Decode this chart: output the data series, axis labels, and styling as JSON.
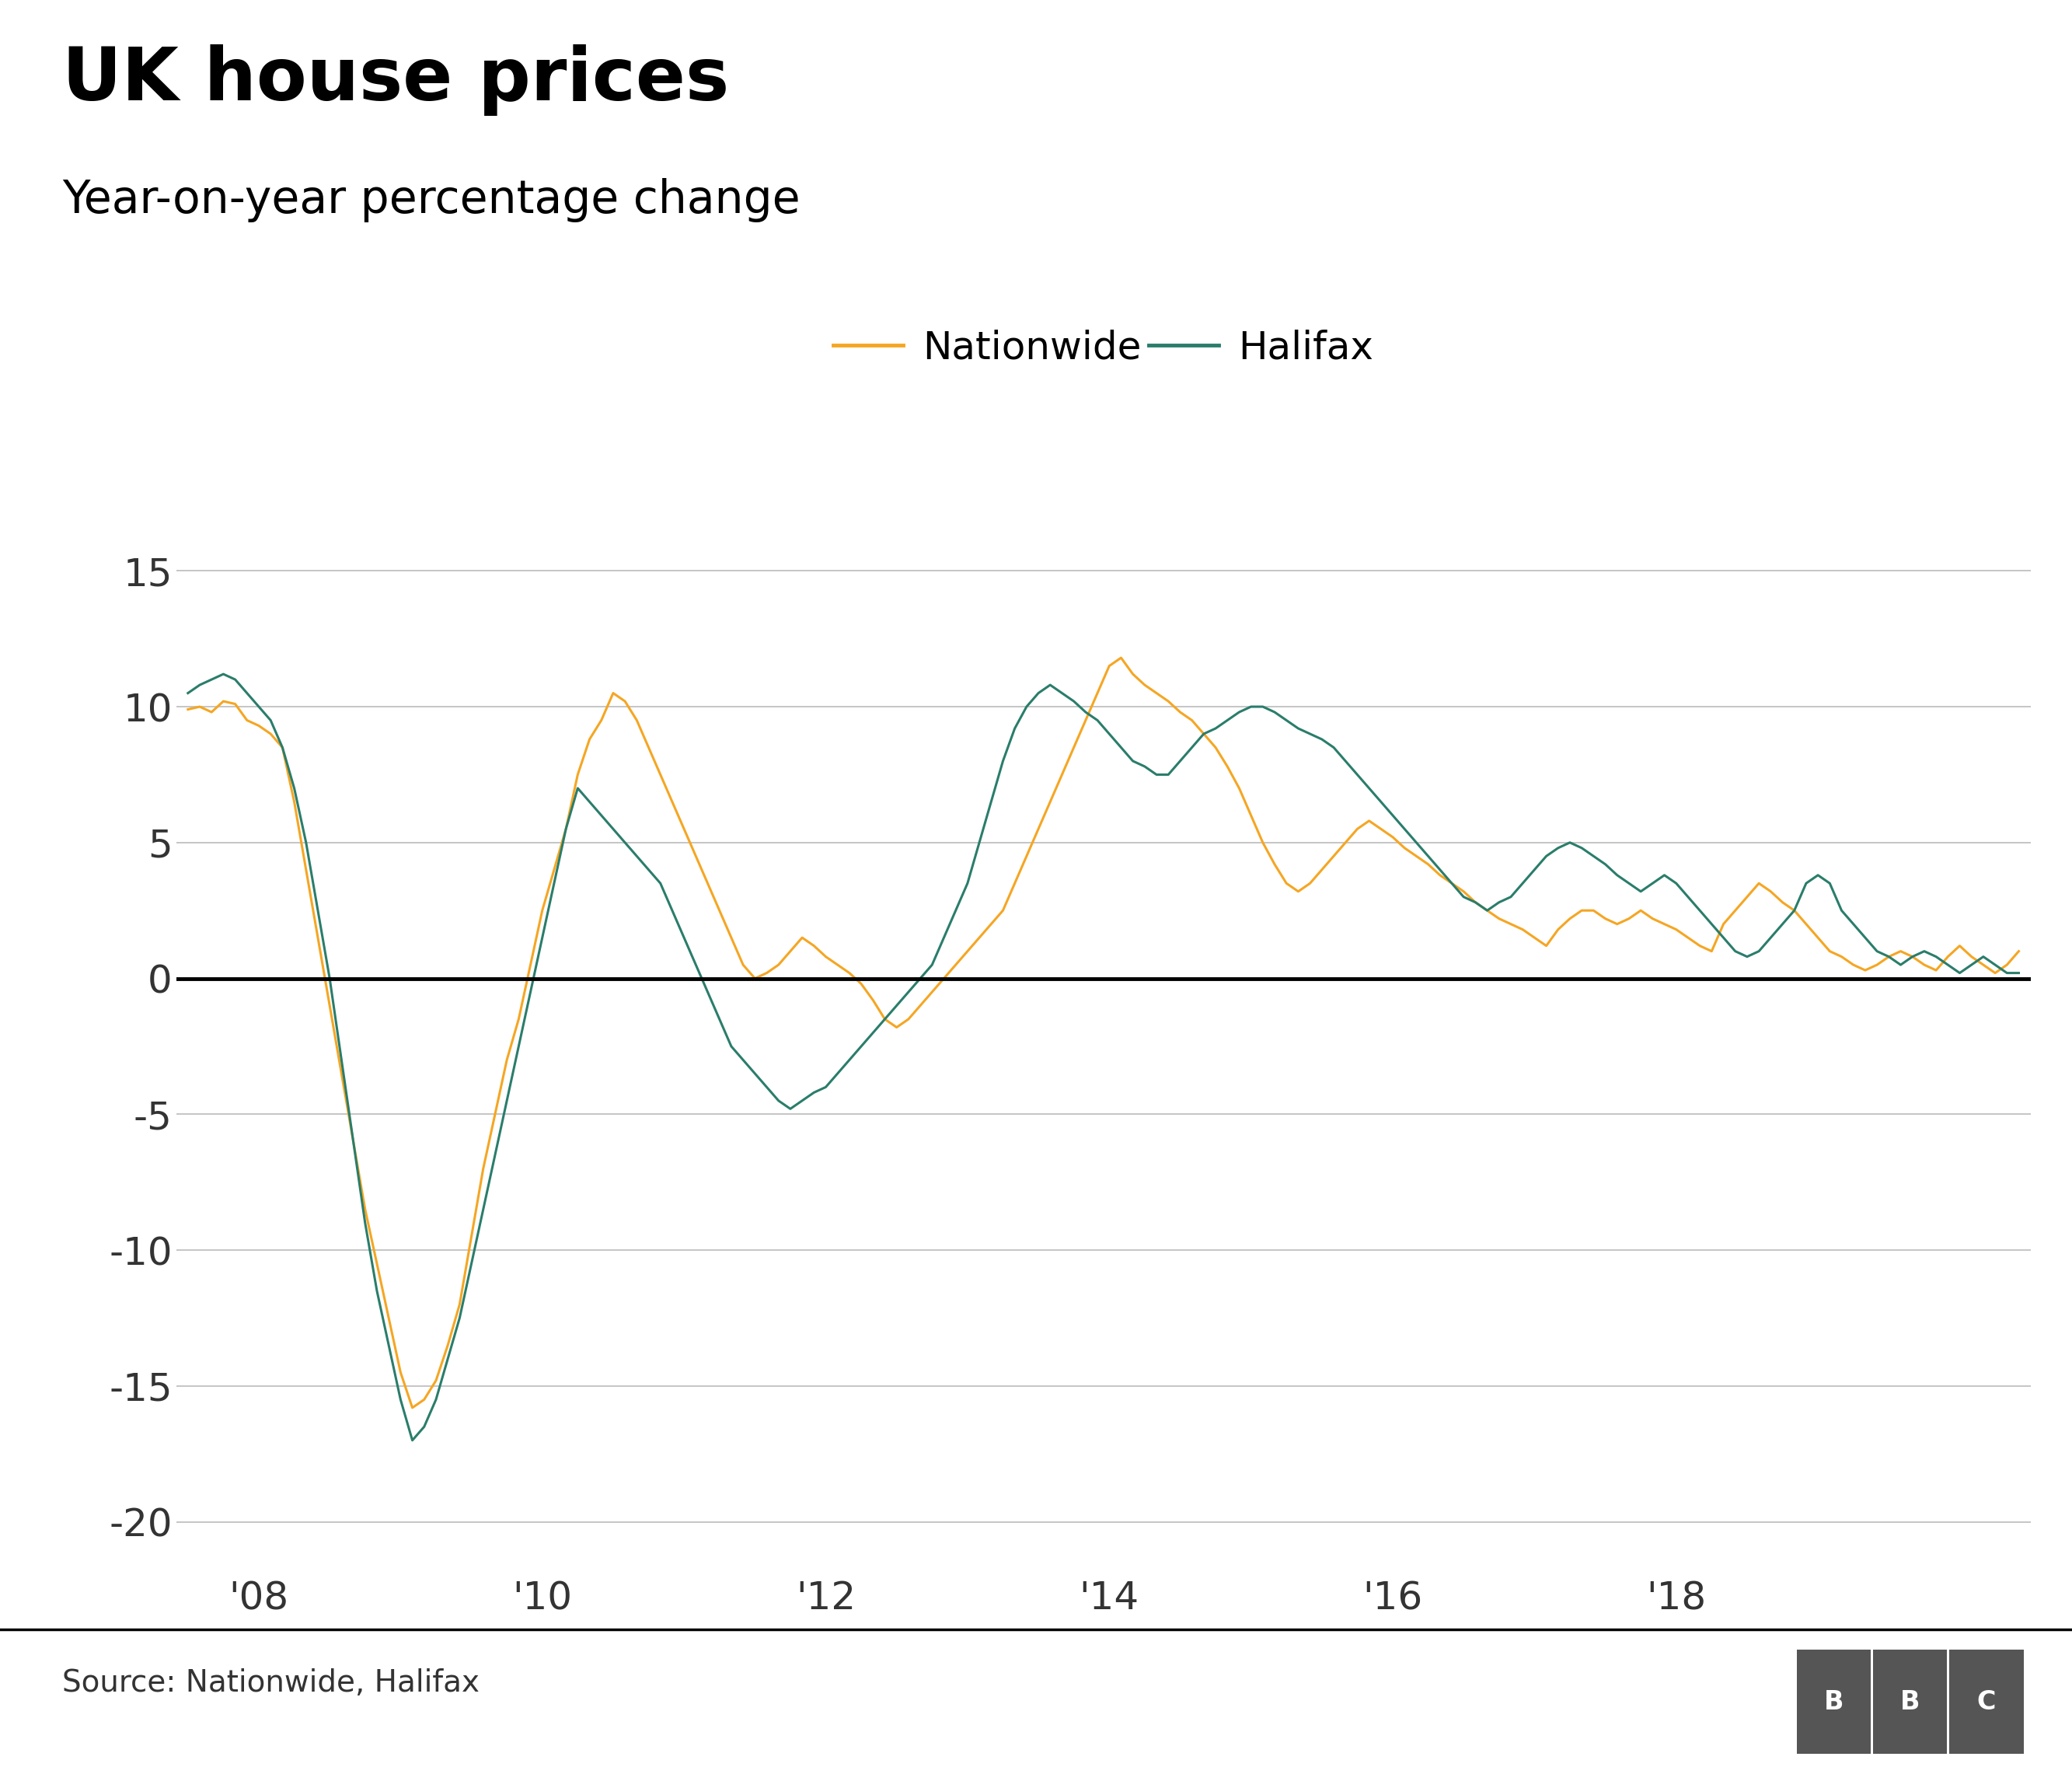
{
  "title": "UK house prices",
  "subtitle": "Year-on-year percentage change",
  "source": "Source: Nationwide, Halifax",
  "nationwide_color": "#f5a623",
  "halifax_color": "#2a7d6b",
  "zero_line_color": "#000000",
  "grid_color": "#bbbbbb",
  "background_color": "#ffffff",
  "ylim": [
    -22,
    17
  ],
  "yticks": [
    -20,
    -15,
    -10,
    -5,
    0,
    5,
    10,
    15
  ],
  "title_fontsize": 68,
  "subtitle_fontsize": 42,
  "tick_fontsize": 36,
  "legend_fontsize": 36,
  "source_fontsize": 28,
  "nationwide": [
    9.9,
    10.0,
    9.8,
    10.2,
    10.1,
    9.5,
    9.3,
    9.0,
    8.5,
    6.5,
    4.0,
    1.5,
    -1.0,
    -3.5,
    -6.0,
    -8.5,
    -10.5,
    -12.5,
    -14.5,
    -15.8,
    -15.5,
    -14.8,
    -13.5,
    -12.0,
    -9.5,
    -7.0,
    -5.0,
    -3.0,
    -1.5,
    0.5,
    2.5,
    4.0,
    5.5,
    7.5,
    8.8,
    9.5,
    10.5,
    10.2,
    9.5,
    8.5,
    7.5,
    6.5,
    5.5,
    4.5,
    3.5,
    2.5,
    1.5,
    0.5,
    0.0,
    0.2,
    0.5,
    1.0,
    1.5,
    1.2,
    0.8,
    0.5,
    0.2,
    -0.2,
    -0.8,
    -1.5,
    -1.8,
    -1.5,
    -1.0,
    -0.5,
    0.0,
    0.5,
    1.0,
    1.5,
    2.0,
    2.5,
    3.5,
    4.5,
    5.5,
    6.5,
    7.5,
    8.5,
    9.5,
    10.5,
    11.5,
    11.8,
    11.2,
    10.8,
    10.5,
    10.2,
    9.8,
    9.5,
    9.0,
    8.5,
    7.8,
    7.0,
    6.0,
    5.0,
    4.2,
    3.5,
    3.2,
    3.5,
    4.0,
    4.5,
    5.0,
    5.5,
    5.8,
    5.5,
    5.2,
    4.8,
    4.5,
    4.2,
    3.8,
    3.5,
    3.2,
    2.8,
    2.5,
    2.2,
    2.0,
    1.8,
    1.5,
    1.2,
    1.8,
    2.2,
    2.5,
    2.5,
    2.2,
    2.0,
    2.2,
    2.5,
    2.2,
    2.0,
    1.8,
    1.5,
    1.2,
    1.0,
    2.0,
    2.5,
    3.0,
    3.5,
    3.2,
    2.8,
    2.5,
    2.0,
    1.5,
    1.0,
    0.8,
    0.5,
    0.3,
    0.5,
    0.8,
    1.0,
    0.8,
    0.5,
    0.3,
    0.8,
    1.2,
    0.8,
    0.5,
    0.2,
    0.5,
    1.0
  ],
  "halifax": [
    10.5,
    10.8,
    11.0,
    11.2,
    11.0,
    10.5,
    10.0,
    9.5,
    8.5,
    7.0,
    5.0,
    2.5,
    0.0,
    -3.0,
    -6.0,
    -9.0,
    -11.5,
    -13.5,
    -15.5,
    -17.0,
    -16.5,
    -15.5,
    -14.0,
    -12.5,
    -10.5,
    -8.5,
    -6.5,
    -4.5,
    -2.5,
    -0.5,
    1.5,
    3.5,
    5.5,
    7.0,
    6.5,
    6.0,
    5.5,
    5.0,
    4.5,
    4.0,
    3.5,
    2.5,
    1.5,
    0.5,
    -0.5,
    -1.5,
    -2.5,
    -3.0,
    -3.5,
    -4.0,
    -4.5,
    -4.8,
    -4.5,
    -4.2,
    -4.0,
    -3.5,
    -3.0,
    -2.5,
    -2.0,
    -1.5,
    -1.0,
    -0.5,
    0.0,
    0.5,
    1.5,
    2.5,
    3.5,
    5.0,
    6.5,
    8.0,
    9.2,
    10.0,
    10.5,
    10.8,
    10.5,
    10.2,
    9.8,
    9.5,
    9.0,
    8.5,
    8.0,
    7.8,
    7.5,
    7.5,
    8.0,
    8.5,
    9.0,
    9.2,
    9.5,
    9.8,
    10.0,
    10.0,
    9.8,
    9.5,
    9.2,
    9.0,
    8.8,
    8.5,
    8.0,
    7.5,
    7.0,
    6.5,
    6.0,
    5.5,
    5.0,
    4.5,
    4.0,
    3.5,
    3.0,
    2.8,
    2.5,
    2.8,
    3.0,
    3.5,
    4.0,
    4.5,
    4.8,
    5.0,
    4.8,
    4.5,
    4.2,
    3.8,
    3.5,
    3.2,
    3.5,
    3.8,
    3.5,
    3.0,
    2.5,
    2.0,
    1.5,
    1.0,
    0.8,
    1.0,
    1.5,
    2.0,
    2.5,
    3.5,
    3.8,
    3.5,
    2.5,
    2.0,
    1.5,
    1.0,
    0.8,
    0.5,
    0.8,
    1.0,
    0.8,
    0.5,
    0.2,
    0.5,
    0.8,
    0.5,
    0.2,
    0.2
  ]
}
